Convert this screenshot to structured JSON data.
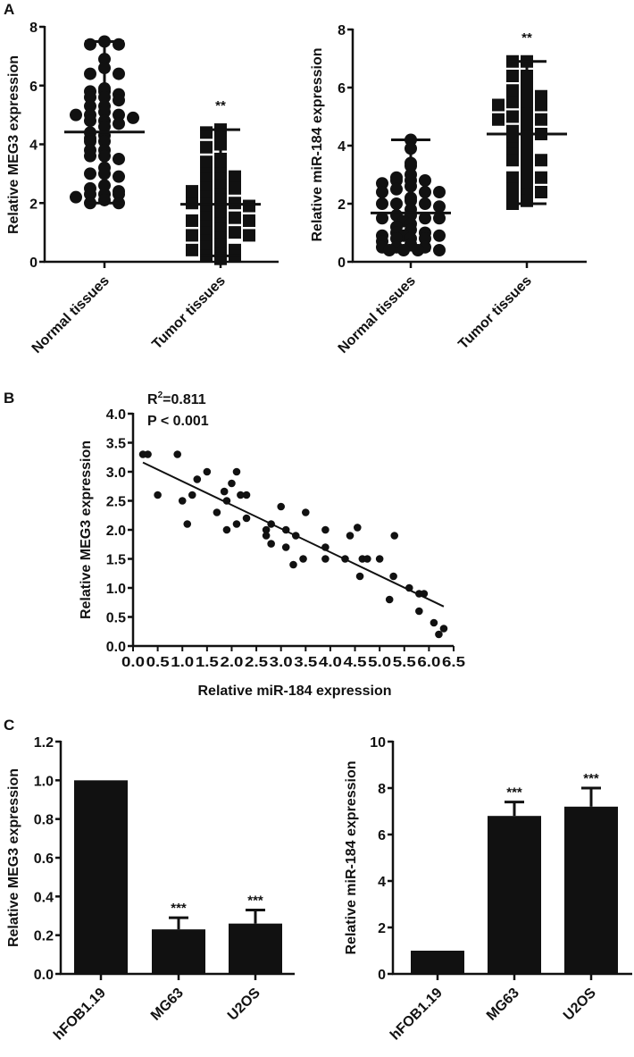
{
  "figure": {
    "panel_labels": [
      "A",
      "B",
      "C"
    ]
  },
  "chart_data": [
    {
      "id": "A-left",
      "type": "scatter",
      "subtype": "dot-plot with mean and range",
      "panel": "A",
      "ylabel": "Relative MEG3 expression",
      "ylim": [
        0,
        8
      ],
      "yticks": [
        "0",
        "2",
        "4",
        "6",
        "8"
      ],
      "categories": [
        "Normal tissues",
        "Tumor tissues"
      ],
      "groups": [
        {
          "name": "Normal tissues",
          "marker": "circle",
          "mean": 4.42,
          "min": 2.0,
          "max": 7.5,
          "annotation": "",
          "points": [
            7.5,
            7.4,
            7.4,
            6.9,
            6.6,
            6.4,
            6.4,
            5.9,
            5.8,
            5.8,
            5.7,
            5.6,
            5.6,
            5.5,
            5.3,
            5.3,
            5.1,
            5.0,
            5.0,
            5.0,
            4.9,
            4.8,
            4.8,
            4.7,
            4.6,
            4.4,
            4.3,
            4.2,
            4.1,
            4.1,
            3.8,
            3.8,
            3.6,
            3.6,
            3.5,
            3.2,
            3.0,
            3.0,
            2.9,
            2.6,
            2.5,
            2.4,
            2.3,
            2.3,
            2.3,
            2.2,
            2.1,
            2.0,
            2.0
          ]
        },
        {
          "name": "Tumor tissues",
          "marker": "square",
          "mean": 1.96,
          "min": 0.2,
          "max": 4.5,
          "annotation": "**",
          "points": [
            4.5,
            4.4,
            4.2,
            4.0,
            3.9,
            3.5,
            3.4,
            3.3,
            3.0,
            3.0,
            2.9,
            2.8,
            2.8,
            2.6,
            2.5,
            2.5,
            2.4,
            2.3,
            2.2,
            2.1,
            2.0,
            2.0,
            2.0,
            1.9,
            1.8,
            1.7,
            1.6,
            1.5,
            1.5,
            1.4,
            1.4,
            1.3,
            1.2,
            1.1,
            1.0,
            1.0,
            0.9,
            0.9,
            0.8,
            0.7,
            0.6,
            0.5,
            0.4,
            0.4,
            0.3,
            0.2,
            0.2,
            0.1
          ]
        }
      ]
    },
    {
      "id": "A-right",
      "type": "scatter",
      "subtype": "dot-plot with mean and range",
      "panel": "A",
      "ylabel": "Relative miR-184 expression",
      "ylim": [
        0,
        8
      ],
      "yticks": [
        "0",
        "2",
        "4",
        "6",
        "8"
      ],
      "categories": [
        "Normal tissues",
        "Tumor tissues"
      ],
      "groups": [
        {
          "name": "Normal tissues",
          "marker": "circle",
          "mean": 1.68,
          "min": 0.4,
          "max": 4.2,
          "annotation": "",
          "points": [
            4.2,
            3.9,
            3.4,
            3.3,
            3.0,
            2.9,
            2.8,
            2.8,
            2.8,
            2.7,
            2.6,
            2.5,
            2.4,
            2.4,
            2.4,
            2.2,
            2.1,
            2.0,
            2.0,
            2.0,
            1.9,
            1.8,
            1.6,
            1.6,
            1.5,
            1.5,
            1.5,
            1.4,
            1.3,
            1.2,
            1.1,
            1.0,
            1.0,
            0.9,
            0.9,
            0.9,
            0.8,
            0.8,
            0.8,
            0.7,
            0.6,
            0.5,
            0.5,
            0.5,
            0.4,
            0.4,
            0.4,
            0.4
          ]
        },
        {
          "name": "Tumor tissues",
          "marker": "square",
          "mean": 4.4,
          "min": 2.0,
          "max": 6.9,
          "annotation": "**",
          "points": [
            6.9,
            6.9,
            6.4,
            6.4,
            6.0,
            5.9,
            5.8,
            5.8,
            5.7,
            5.6,
            5.5,
            5.4,
            5.4,
            5.2,
            5.1,
            5.0,
            4.9,
            4.9,
            4.8,
            4.6,
            4.5,
            4.4,
            4.3,
            4.2,
            4.0,
            3.9,
            3.8,
            3.7,
            3.6,
            3.5,
            3.5,
            3.2,
            3.0,
            2.9,
            2.9,
            2.6,
            2.5,
            2.4,
            2.3,
            2.2,
            2.1,
            2.0
          ]
        }
      ]
    },
    {
      "id": "B",
      "type": "scatter",
      "panel": "B",
      "xlabel": "Relative miR-184 expression",
      "ylabel": "Relative MEG3 expression",
      "xlim": [
        0,
        6.5
      ],
      "ylim": [
        0,
        4.0
      ],
      "xticks": [
        "0.0",
        "0.5",
        "1.0",
        "1.5",
        "2.0",
        "2.5",
        "3.0",
        "3.5",
        "4.0",
        "4.5",
        "5.0",
        "5.5",
        "6.0",
        "6.5"
      ],
      "yticks": [
        "0.0",
        "0.5",
        "1.0",
        "1.5",
        "2.0",
        "2.5",
        "3.0",
        "3.5",
        "4.0"
      ],
      "annotation": {
        "r2_label": "R",
        "r2_sup": "2",
        "r2_value": "=0.811",
        "p_text": "P < 0.001"
      },
      "fit_line": {
        "x": [
          0.2,
          6.3
        ],
        "y": [
          3.16,
          0.68
        ]
      },
      "points": [
        [
          0.2,
          3.3
        ],
        [
          0.3,
          3.3
        ],
        [
          0.5,
          2.6
        ],
        [
          0.9,
          3.3
        ],
        [
          1.0,
          2.5
        ],
        [
          1.1,
          2.1
        ],
        [
          1.2,
          2.6
        ],
        [
          1.3,
          2.87
        ],
        [
          1.5,
          3.0
        ],
        [
          1.7,
          2.3
        ],
        [
          1.85,
          2.66
        ],
        [
          1.9,
          2.5
        ],
        [
          1.9,
          2.0
        ],
        [
          2.0,
          2.8
        ],
        [
          2.1,
          3.0
        ],
        [
          2.1,
          2.1
        ],
        [
          2.18,
          2.6
        ],
        [
          2.3,
          2.6
        ],
        [
          2.3,
          2.2
        ],
        [
          2.7,
          2.0
        ],
        [
          2.7,
          1.9
        ],
        [
          2.8,
          2.1
        ],
        [
          2.8,
          1.76
        ],
        [
          3.0,
          2.4
        ],
        [
          3.1,
          2.0
        ],
        [
          3.1,
          1.7
        ],
        [
          3.25,
          1.4
        ],
        [
          3.3,
          1.9
        ],
        [
          3.45,
          1.5
        ],
        [
          3.5,
          2.3
        ],
        [
          3.9,
          2.0
        ],
        [
          3.9,
          1.7
        ],
        [
          3.9,
          1.5
        ],
        [
          4.3,
          1.5
        ],
        [
          4.4,
          1.9
        ],
        [
          4.55,
          2.04
        ],
        [
          4.6,
          1.2
        ],
        [
          4.65,
          1.5
        ],
        [
          4.75,
          1.5
        ],
        [
          5.0,
          1.5
        ],
        [
          5.2,
          0.8
        ],
        [
          5.28,
          1.2
        ],
        [
          5.3,
          1.9
        ],
        [
          5.6,
          1.0
        ],
        [
          5.8,
          0.9
        ],
        [
          5.8,
          0.6
        ],
        [
          5.9,
          0.9
        ],
        [
          6.1,
          0.4
        ],
        [
          6.2,
          0.2
        ],
        [
          6.3,
          0.3
        ]
      ]
    },
    {
      "id": "C-left",
      "type": "bar",
      "panel": "C",
      "ylabel": "Relative MEG3 expression",
      "ylim": [
        0,
        1.2
      ],
      "yticks": [
        "0.0",
        "0.2",
        "0.4",
        "0.6",
        "0.8",
        "1.0",
        "1.2"
      ],
      "categories": [
        "hFOB1.19",
        "MG63",
        "U2OS"
      ],
      "values": [
        1.0,
        0.23,
        0.26
      ],
      "errors": [
        0,
        0.06,
        0.07
      ],
      "annotations": [
        "",
        "***",
        "***"
      ]
    },
    {
      "id": "C-right",
      "type": "bar",
      "panel": "C",
      "ylabel": "Relative miR-184 expression",
      "ylim": [
        0,
        10
      ],
      "yticks": [
        "0",
        "2",
        "4",
        "6",
        "8",
        "10"
      ],
      "categories": [
        "hFOB1.19",
        "MG63",
        "U2OS"
      ],
      "values": [
        1.0,
        6.8,
        7.2
      ],
      "errors": [
        0,
        0.6,
        0.8
      ],
      "annotations": [
        "",
        "***",
        "***"
      ]
    }
  ]
}
